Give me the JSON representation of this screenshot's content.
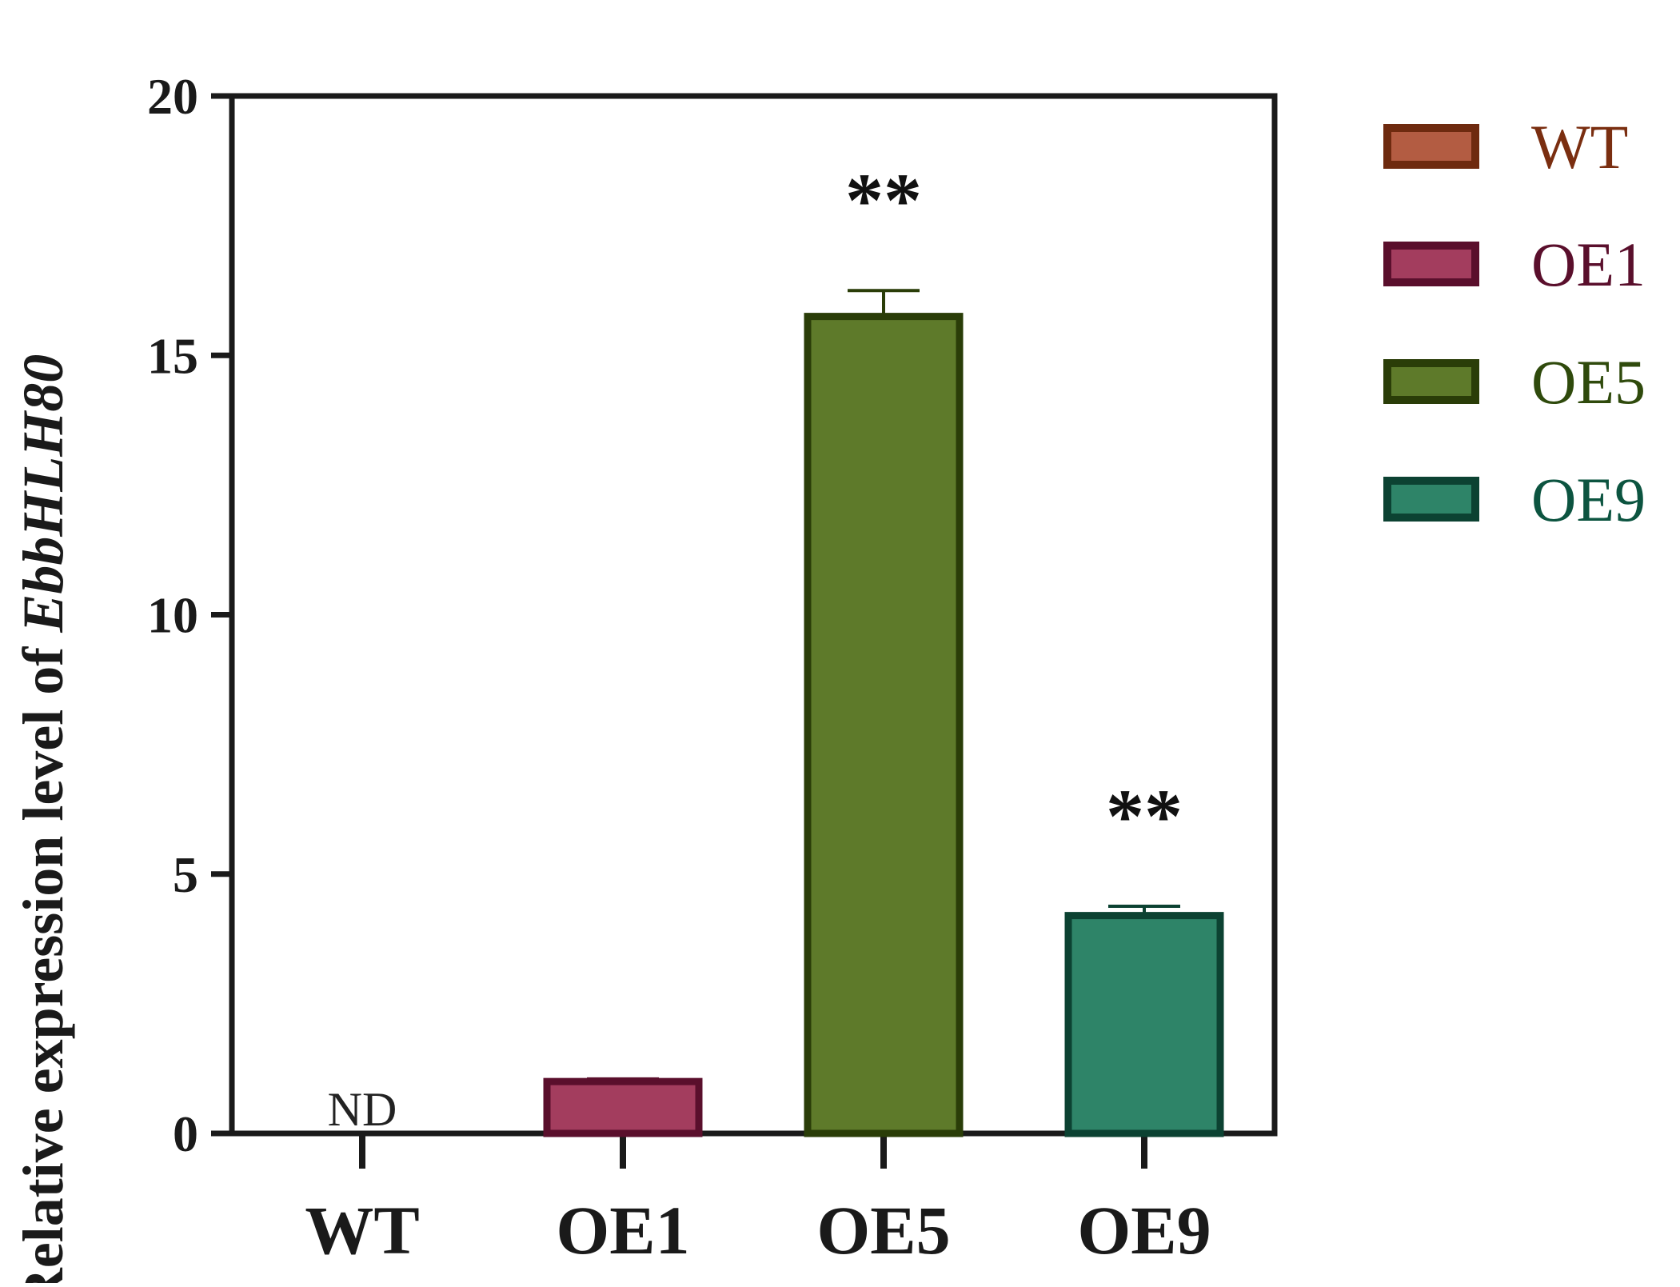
{
  "chart_data": {
    "type": "bar",
    "title": "",
    "xlabel": "",
    "ylabel_prefix": "Relative expression level of ",
    "ylabel_gene": "EbbHLH80",
    "ylim": [
      0,
      20
    ],
    "yticks": [
      0,
      5,
      10,
      15,
      20
    ],
    "categories": [
      "WT",
      "OE1",
      "OE5",
      "OE9"
    ],
    "values": [
      0,
      1.0,
      15.75,
      4.2
    ],
    "errors": [
      0,
      0.05,
      0.5,
      0.18
    ],
    "annotations": [
      "ND",
      "",
      "**",
      "**"
    ],
    "colors": {
      "WT": {
        "fill": "#b35c42",
        "stroke": "#6e2a0f",
        "text": "#7a2e10"
      },
      "OE1": {
        "fill": "#a33d5e",
        "stroke": "#5a0f2c",
        "text": "#5a0f2c"
      },
      "OE5": {
        "fill": "#5e7a2a",
        "stroke": "#2a3d08",
        "text": "#2f4a0c"
      },
      "OE9": {
        "fill": "#2e8468",
        "stroke": "#0c4232",
        "text": "#0c5440"
      }
    },
    "legend": {
      "placement": "right",
      "entries": [
        "WT",
        "OE1",
        "OE5",
        "OE9"
      ]
    },
    "grid": false
  }
}
